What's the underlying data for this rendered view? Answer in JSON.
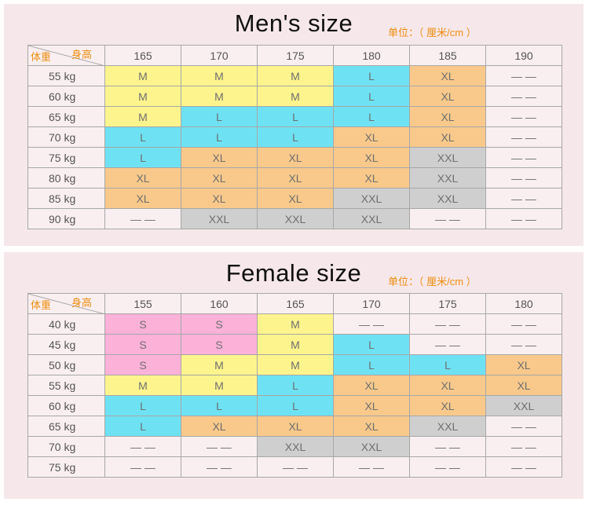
{
  "colors": {
    "S": "#fcb1d9",
    "M": "#fdf48d",
    "L": "#6ee2f3",
    "XL": "#f8c98b",
    "XXL": "#cfcfcf",
    "--": "#f9eff1"
  },
  "men": {
    "title": "Men's size",
    "unit": "单位：（ 厘米/cm ）",
    "corner_height_label": "身高",
    "corner_weight_label": "体重",
    "heights": [
      "165",
      "170",
      "175",
      "180",
      "185",
      "190"
    ],
    "rows": [
      {
        "weight": "55 kg",
        "sizes": [
          "M",
          "M",
          "M",
          "L",
          "XL",
          "--"
        ]
      },
      {
        "weight": "60 kg",
        "sizes": [
          "M",
          "M",
          "M",
          "L",
          "XL",
          "--"
        ]
      },
      {
        "weight": "65 kg",
        "sizes": [
          "M",
          "L",
          "L",
          "L",
          "XL",
          "--"
        ]
      },
      {
        "weight": "70 kg",
        "sizes": [
          "L",
          "L",
          "L",
          "XL",
          "XL",
          "--"
        ]
      },
      {
        "weight": "75 kg",
        "sizes": [
          "L",
          "XL",
          "XL",
          "XL",
          "XXL",
          "--"
        ]
      },
      {
        "weight": "80 kg",
        "sizes": [
          "XL",
          "XL",
          "XL",
          "XL",
          "XXL",
          "--"
        ]
      },
      {
        "weight": "85 kg",
        "sizes": [
          "XL",
          "XL",
          "XL",
          "XXL",
          "XXL",
          "--"
        ]
      },
      {
        "weight": "90 kg",
        "sizes": [
          "--",
          "XXL",
          "XXL",
          "XXL",
          "--",
          "--"
        ]
      }
    ]
  },
  "female": {
    "title": "Female size",
    "unit": "单位：（ 厘米/cm ）",
    "corner_height_label": "身高",
    "corner_weight_label": "体重",
    "heights": [
      "155",
      "160",
      "165",
      "170",
      "175",
      "180"
    ],
    "rows": [
      {
        "weight": "40 kg",
        "sizes": [
          "S",
          "S",
          "M",
          "--",
          "--",
          "--"
        ]
      },
      {
        "weight": "45 kg",
        "sizes": [
          "S",
          "S",
          "M",
          "L",
          "--",
          "--"
        ]
      },
      {
        "weight": "50 kg",
        "sizes": [
          "S",
          "M",
          "M",
          "L",
          "L",
          "XL"
        ]
      },
      {
        "weight": "55 kg",
        "sizes": [
          "M",
          "M",
          "L",
          "XL",
          "XL",
          "XL"
        ]
      },
      {
        "weight": "60 kg",
        "sizes": [
          "L",
          "L",
          "L",
          "XL",
          "XL",
          "XXL"
        ]
      },
      {
        "weight": "65 kg",
        "sizes": [
          "L",
          "XL",
          "XL",
          "XL",
          "XXL",
          "--"
        ]
      },
      {
        "weight": "70 kg",
        "sizes": [
          "--",
          "--",
          "XXL",
          "XXL",
          "--",
          "--"
        ]
      },
      {
        "weight": "75 kg",
        "sizes": [
          "--",
          "--",
          "--",
          "--",
          "--",
          "--"
        ]
      }
    ]
  }
}
